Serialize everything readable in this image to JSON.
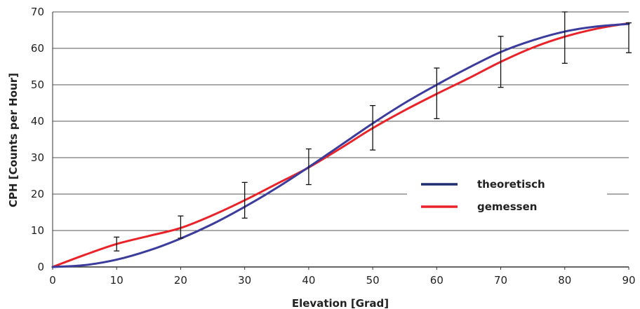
{
  "chart_data": {
    "type": "line",
    "title": "",
    "xlabel": "Elevation [Grad]",
    "ylabel": "CPH [Counts per Hour]",
    "xlim": [
      0,
      90
    ],
    "ylim": [
      0,
      70
    ],
    "xticks": [
      0,
      10,
      20,
      30,
      40,
      50,
      60,
      70,
      80,
      90
    ],
    "yticks": [
      0,
      10,
      20,
      30,
      40,
      50,
      60,
      70
    ],
    "grid": "horizontal",
    "legend_position": "center-right",
    "series": [
      {
        "name": "theoretisch",
        "color": "#3b3c9c",
        "x": [
          0,
          5,
          10,
          15,
          20,
          25,
          30,
          35,
          40,
          45,
          50,
          55,
          60,
          65,
          70,
          75,
          80,
          85,
          90
        ],
        "y": [
          0,
          0.5,
          2.0,
          4.5,
          7.8,
          11.8,
          16.5,
          21.7,
          27.4,
          33.4,
          39.4,
          45.0,
          50.0,
          54.7,
          59.0,
          62.2,
          64.6,
          66.0,
          66.7
        ]
      },
      {
        "name": "gemessen",
        "color": "#e8242a",
        "x": [
          0,
          5,
          10,
          15,
          20,
          25,
          30,
          35,
          40,
          45,
          50,
          55,
          60,
          65,
          70,
          75,
          80,
          85,
          90
        ],
        "y": [
          0,
          3.3,
          6.3,
          8.5,
          10.7,
          14.2,
          18.3,
          22.8,
          27.3,
          32.6,
          38.1,
          43.0,
          47.5,
          51.8,
          56.3,
          60.2,
          63.2,
          65.4,
          66.9
        ],
        "error_bars": [
          {
            "x": 10,
            "low": 4.4,
            "high": 8.2
          },
          {
            "x": 20,
            "low": 7.9,
            "high": 14.0
          },
          {
            "x": 30,
            "low": 13.4,
            "high": 23.2
          },
          {
            "x": 40,
            "low": 22.6,
            "high": 32.4
          },
          {
            "x": 50,
            "low": 32.1,
            "high": 44.3
          },
          {
            "x": 60,
            "low": 40.7,
            "high": 54.6
          },
          {
            "x": 70,
            "low": 49.3,
            "high": 63.3
          },
          {
            "x": 80,
            "low": 55.9,
            "high": 70.0
          },
          {
            "x": 90,
            "low": 58.8,
            "high": 67.0
          }
        ]
      }
    ]
  }
}
